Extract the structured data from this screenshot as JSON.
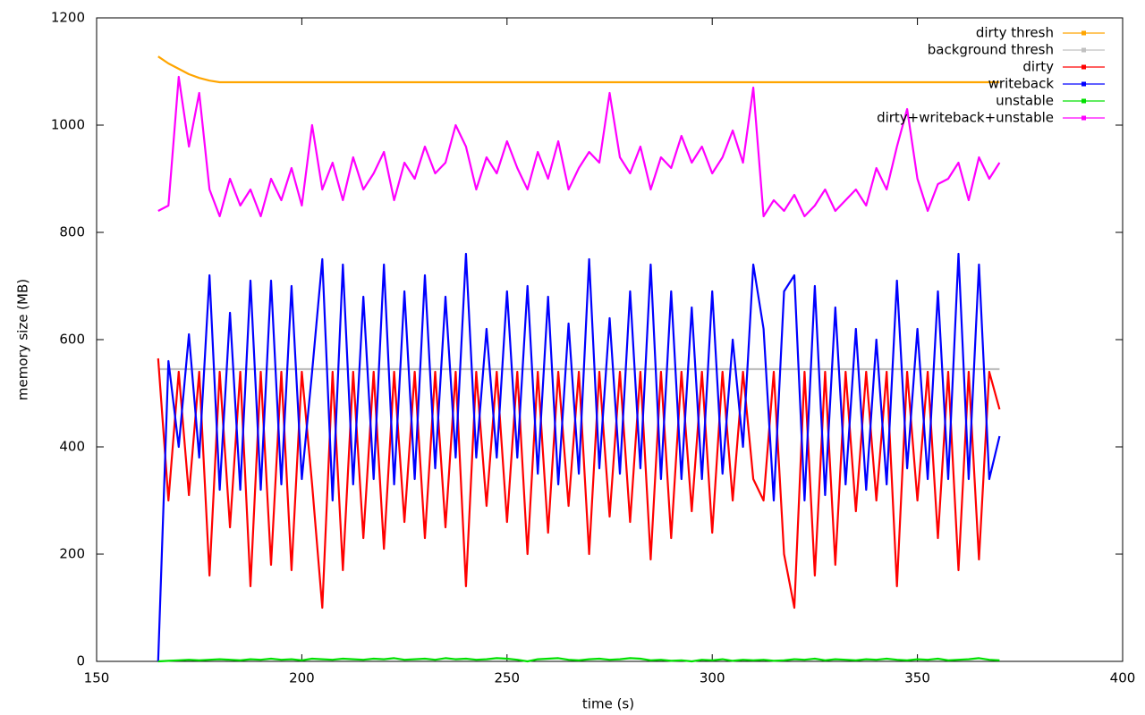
{
  "chart_data": {
    "type": "line",
    "xlabel": "time (s)",
    "ylabel": "memory size (MB)",
    "xlim": [
      150,
      400
    ],
    "ylim": [
      0,
      1200
    ],
    "xticks": [
      150,
      200,
      250,
      300,
      350,
      400
    ],
    "yticks": [
      0,
      200,
      400,
      600,
      800,
      1000,
      1200
    ],
    "grid": false,
    "legend": "top right",
    "x": [
      165,
      167.5,
      170,
      172.5,
      175,
      177.5,
      180,
      182.5,
      185,
      187.5,
      190,
      192.5,
      195,
      197.5,
      200,
      202.5,
      205,
      207.5,
      210,
      212.5,
      215,
      217.5,
      220,
      222.5,
      225,
      227.5,
      230,
      232.5,
      235,
      237.5,
      240,
      242.5,
      245,
      247.5,
      250,
      252.5,
      255,
      257.5,
      260,
      262.5,
      265,
      267.5,
      270,
      272.5,
      275,
      277.5,
      280,
      282.5,
      285,
      287.5,
      290,
      292.5,
      295,
      297.5,
      300,
      302.5,
      305,
      307.5,
      310,
      312.5,
      315,
      317.5,
      320,
      322.5,
      325,
      327.5,
      330,
      332.5,
      335,
      337.5,
      340,
      342.5,
      345,
      347.5,
      350,
      352.5,
      355,
      357.5,
      360,
      362.5,
      365,
      367.5,
      370
    ],
    "series": [
      {
        "name": "dirty thresh",
        "color": "#ffa500",
        "values": [
          1128,
          1115,
          1105,
          1095,
          1088,
          1083,
          1080,
          1080,
          1080,
          1080,
          1080,
          1080,
          1080,
          1080,
          1080,
          1080,
          1080,
          1080,
          1080,
          1080,
          1080,
          1080,
          1080,
          1080,
          1080,
          1080,
          1080,
          1080,
          1080,
          1080,
          1080,
          1080,
          1080,
          1080,
          1080,
          1080,
          1080,
          1080,
          1080,
          1080,
          1080,
          1080,
          1080,
          1080,
          1080,
          1080,
          1080,
          1080,
          1080,
          1080,
          1080,
          1080,
          1080,
          1080,
          1080,
          1080,
          1080,
          1080,
          1080,
          1080,
          1080,
          1080,
          1080,
          1080,
          1080,
          1080,
          1080,
          1080,
          1080,
          1080,
          1080,
          1080,
          1080,
          1080,
          1080,
          1080,
          1080,
          1080,
          1080,
          1080,
          1080,
          1080,
          1080
        ]
      },
      {
        "name": "background thresh",
        "color": "#c0c0c0",
        "values": [
          545,
          545,
          545,
          545,
          545,
          545,
          545,
          545,
          545,
          545,
          545,
          545,
          545,
          545,
          545,
          545,
          545,
          545,
          545,
          545,
          545,
          545,
          545,
          545,
          545,
          545,
          545,
          545,
          545,
          545,
          545,
          545,
          545,
          545,
          545,
          545,
          545,
          545,
          545,
          545,
          545,
          545,
          545,
          545,
          545,
          545,
          545,
          545,
          545,
          545,
          545,
          545,
          545,
          545,
          545,
          545,
          545,
          545,
          545,
          545,
          545,
          545,
          545,
          545,
          545,
          545,
          545,
          545,
          545,
          545,
          545,
          545,
          545,
          545,
          545,
          545,
          545,
          545,
          545,
          545,
          545,
          545,
          545
        ]
      },
      {
        "name": "dirty",
        "color": "#ff0000",
        "values": [
          565,
          300,
          540,
          310,
          540,
          160,
          540,
          250,
          540,
          140,
          540,
          180,
          540,
          170,
          540,
          330,
          100,
          540,
          170,
          540,
          230,
          540,
          210,
          540,
          260,
          540,
          230,
          540,
          250,
          540,
          140,
          540,
          290,
          540,
          260,
          540,
          200,
          540,
          240,
          540,
          290,
          540,
          200,
          540,
          270,
          540,
          260,
          540,
          190,
          540,
          230,
          540,
          280,
          540,
          240,
          540,
          300,
          540,
          340,
          300,
          540,
          200,
          100,
          540,
          160,
          540,
          180,
          540,
          280,
          540,
          300,
          540,
          140,
          540,
          300,
          540,
          230,
          540,
          170,
          540,
          190,
          540,
          470
        ]
      },
      {
        "name": "writeback",
        "color": "#0000ff",
        "values": [
          0,
          560,
          400,
          610,
          380,
          720,
          320,
          650,
          320,
          710,
          320,
          710,
          330,
          700,
          340,
          540,
          750,
          300,
          740,
          330,
          680,
          340,
          740,
          330,
          690,
          340,
          720,
          360,
          680,
          380,
          760,
          380,
          620,
          380,
          690,
          380,
          700,
          350,
          680,
          330,
          630,
          350,
          750,
          360,
          640,
          350,
          690,
          360,
          740,
          340,
          690,
          340,
          660,
          340,
          690,
          350,
          600,
          400,
          740,
          620,
          300,
          690,
          720,
          300,
          700,
          310,
          660,
          330,
          620,
          320,
          600,
          330,
          710,
          360,
          620,
          340,
          690,
          340,
          760,
          340,
          740,
          340,
          420
        ]
      },
      {
        "name": "unstable",
        "color": "#00e000",
        "values": [
          0,
          1,
          2,
          3,
          2,
          3,
          4,
          3,
          2,
          4,
          3,
          5,
          3,
          4,
          2,
          5,
          4,
          3,
          5,
          4,
          3,
          5,
          4,
          6,
          3,
          4,
          5,
          3,
          6,
          4,
          5,
          3,
          4,
          6,
          5,
          3,
          0,
          4,
          5,
          6,
          3,
          2,
          4,
          5,
          3,
          4,
          6,
          5,
          2,
          3,
          1,
          2,
          0,
          3,
          2,
          4,
          1,
          3,
          2,
          3,
          1,
          2,
          4,
          3,
          5,
          2,
          4,
          3,
          2,
          4,
          3,
          5,
          3,
          2,
          4,
          3,
          5,
          2,
          3,
          4,
          6,
          3,
          2
        ]
      },
      {
        "name": "dirty+writeback+unstable",
        "color": "#ff00ff",
        "values": [
          840,
          850,
          1090,
          960,
          1060,
          880,
          830,
          900,
          850,
          880,
          830,
          900,
          860,
          920,
          850,
          1000,
          880,
          930,
          860,
          940,
          880,
          910,
          950,
          860,
          930,
          900,
          960,
          910,
          930,
          1000,
          960,
          880,
          940,
          910,
          970,
          920,
          880,
          950,
          900,
          970,
          880,
          920,
          950,
          930,
          1060,
          940,
          910,
          960,
          880,
          940,
          920,
          980,
          930,
          960,
          910,
          940,
          990,
          930,
          1070,
          830,
          860,
          840,
          870,
          830,
          850,
          880,
          840,
          860,
          880,
          850,
          920,
          880,
          960,
          1030,
          900,
          840,
          890,
          900,
          930,
          860,
          940,
          900,
          930
        ]
      }
    ]
  }
}
